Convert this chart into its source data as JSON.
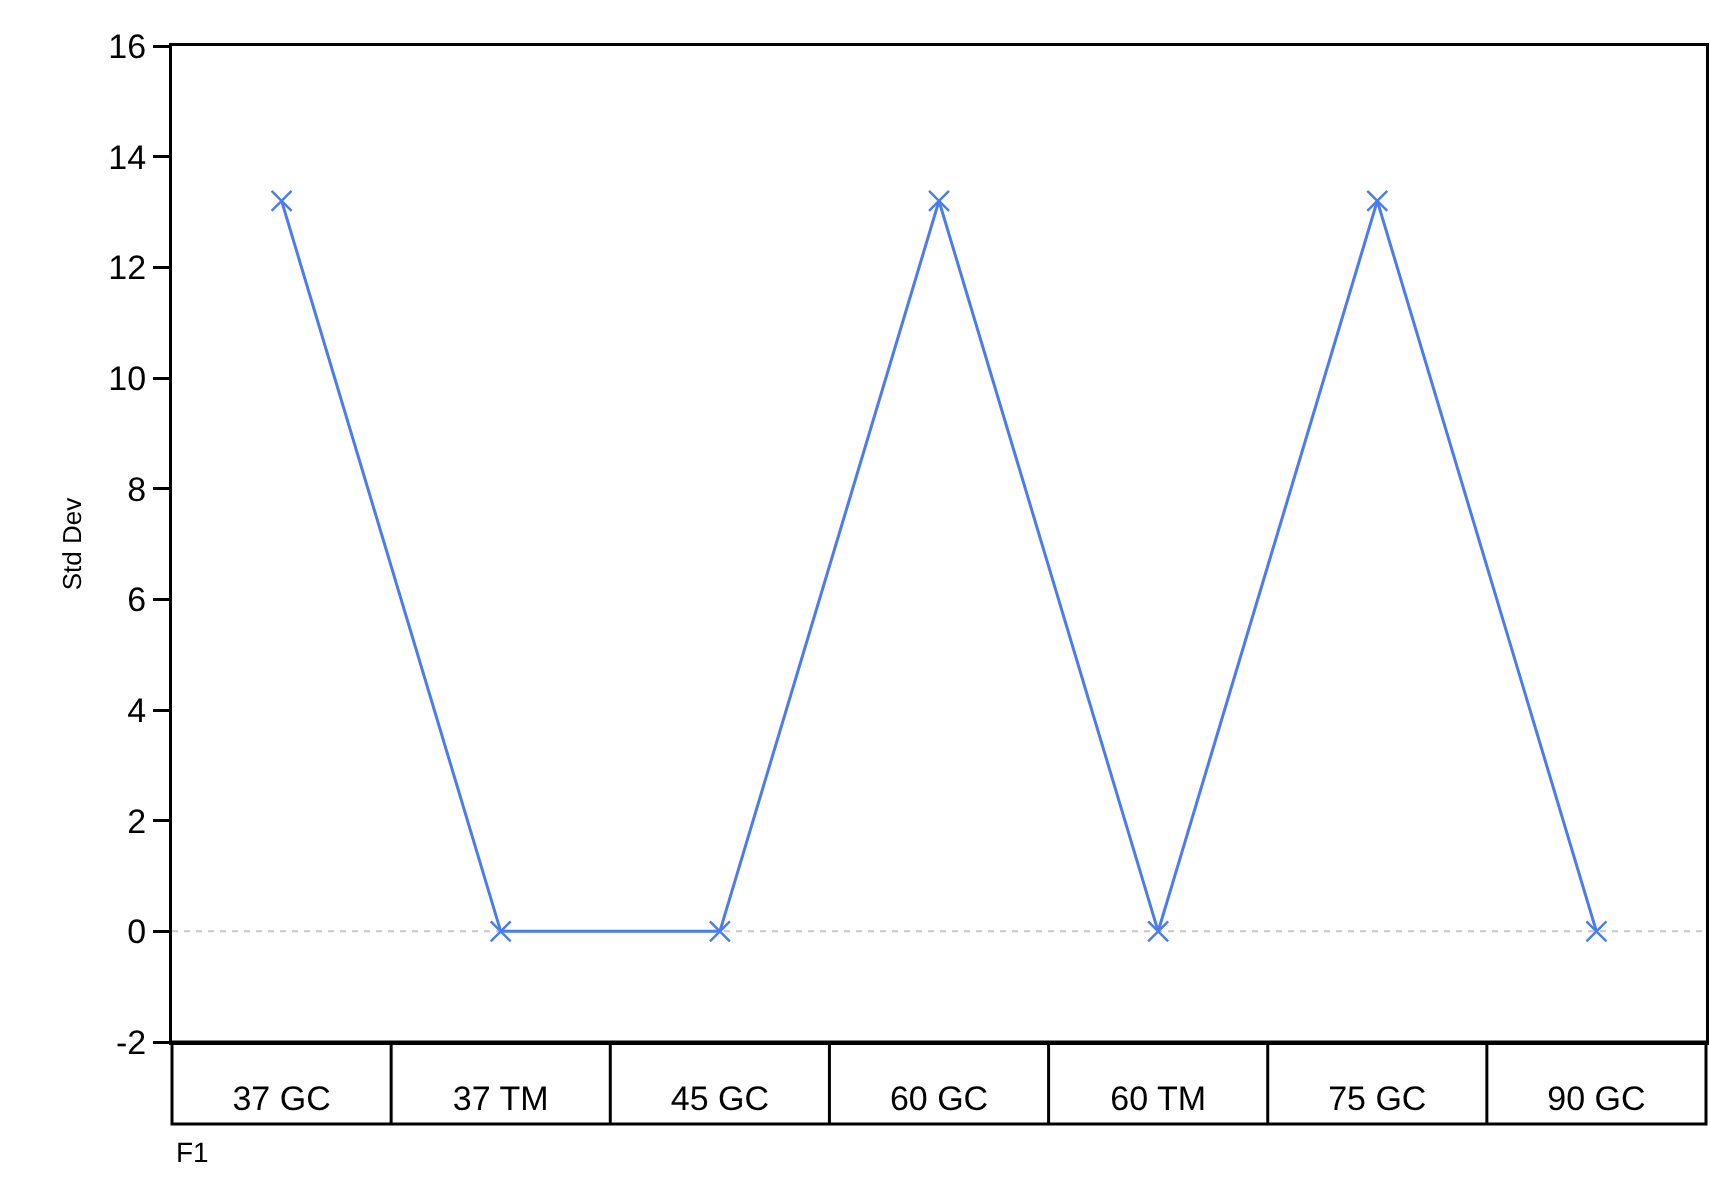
{
  "chart_data": {
    "type": "line",
    "xlabel": "F1",
    "ylabel": "Std Dev",
    "categories": [
      "37 GC",
      "37 TM",
      "45 GC",
      "60 GC",
      "60 TM",
      "75 GC",
      "90 GC"
    ],
    "series": [
      {
        "color": "#4a7cf0",
        "values": [
          13.2,
          0,
          0,
          13.2,
          0,
          13.2,
          0
        ]
      }
    ],
    "ylim": [
      -2,
      16
    ],
    "yticks": [
      -2,
      0,
      2,
      4,
      6,
      8,
      10,
      12,
      14,
      16
    ],
    "grid": false,
    "marker": "cross",
    "line_style": "solid",
    "ref_lines": [
      {
        "axis": "y",
        "value": 0,
        "color": "#c8c8c8",
        "line_style": "dotted"
      }
    ]
  }
}
